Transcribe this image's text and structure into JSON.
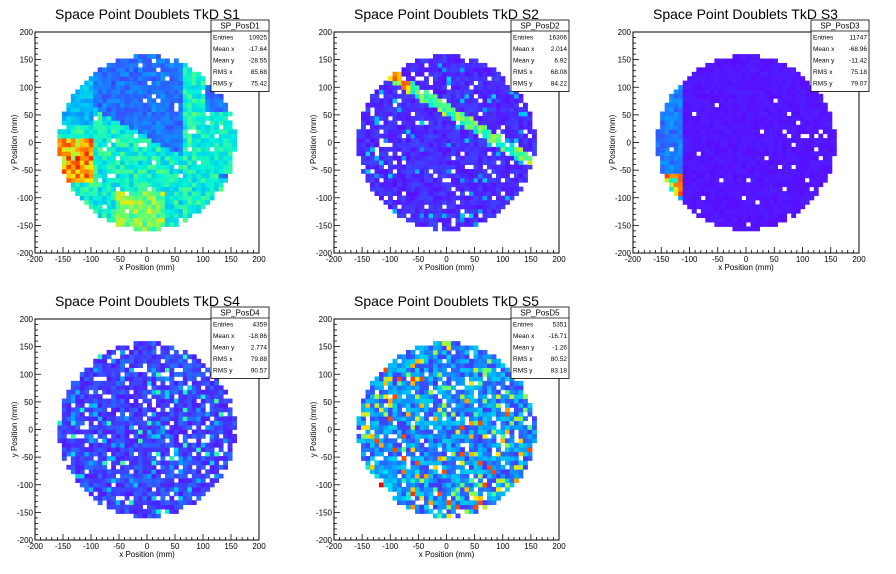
{
  "chart_data": [
    {
      "type": "heatmap",
      "title": "Space Point Doublets TkD S1",
      "xlabel": "x Position (mm)",
      "ylabel": "y Position (mm)",
      "xlim": [
        -200,
        200
      ],
      "ylim": [
        -200,
        200
      ],
      "x_ticks": [
        "-200",
        "-150",
        "-100",
        "-50",
        "0",
        "50",
        "100",
        "150",
        "200"
      ],
      "y_ticks": [
        "-200",
        "-150",
        "-100",
        "-50",
        "0",
        "50",
        "100",
        "150",
        "200"
      ],
      "stats": {
        "name": "SP_PosD1",
        "rows": [
          {
            "label": "Entries",
            "value": "10925"
          },
          {
            "label": "Mean x",
            "value": "-17.64"
          },
          {
            "label": "Mean y",
            "value": "-28.55"
          },
          {
            "label": "RMS x",
            "value": "85.68"
          },
          {
            "label": "RMS y",
            "value": "75.42"
          }
        ]
      },
      "pattern": "s1"
    },
    {
      "type": "heatmap",
      "title": "Space Point Doublets TkD S2",
      "xlabel": "x Position (mm)",
      "ylabel": "y Position (mm)",
      "xlim": [
        -200,
        200
      ],
      "ylim": [
        -200,
        200
      ],
      "x_ticks": [
        "-200",
        "-150",
        "-100",
        "-50",
        "0",
        "50",
        "100",
        "150",
        "200"
      ],
      "y_ticks": [
        "-200",
        "-150",
        "-100",
        "-50",
        "0",
        "50",
        "100",
        "150",
        "200"
      ],
      "stats": {
        "name": "SP_PosD2",
        "rows": [
          {
            "label": "Entries",
            "value": "16306"
          },
          {
            "label": "Mean x",
            "value": "2.014"
          },
          {
            "label": "Mean y",
            "value": "6.92"
          },
          {
            "label": "RMS x",
            "value": "68.08"
          },
          {
            "label": "RMS y",
            "value": "84.22"
          }
        ]
      },
      "pattern": "s2"
    },
    {
      "type": "heatmap",
      "title": "Space Point Doublets TkD S3",
      "xlabel": "x Position (mm)",
      "ylabel": "y Position (mm)",
      "xlim": [
        -200,
        200
      ],
      "ylim": [
        -200,
        200
      ],
      "x_ticks": [
        "-200",
        "-150",
        "-100",
        "-50",
        "0",
        "50",
        "100",
        "150",
        "200"
      ],
      "y_ticks": [
        "-200",
        "-150",
        "-100",
        "-50",
        "0",
        "50",
        "100",
        "150",
        "200"
      ],
      "stats": {
        "name": "SP_PosD3",
        "rows": [
          {
            "label": "Entries",
            "value": "11747"
          },
          {
            "label": "Mean x",
            "value": "-68.96"
          },
          {
            "label": "Mean y",
            "value": "-11.42"
          },
          {
            "label": "RMS x",
            "value": "75.18"
          },
          {
            "label": "RMS y",
            "value": "79.07"
          }
        ]
      },
      "pattern": "s3"
    },
    {
      "type": "heatmap",
      "title": "Space Point Doublets TkD S4",
      "xlabel": "x Position (mm)",
      "ylabel": "y Position (mm)",
      "xlim": [
        -200,
        200
      ],
      "ylim": [
        -200,
        200
      ],
      "x_ticks": [
        "-200",
        "-150",
        "-100",
        "-50",
        "0",
        "50",
        "100",
        "150",
        "200"
      ],
      "y_ticks": [
        "-200",
        "-150",
        "-100",
        "-50",
        "0",
        "50",
        "100",
        "150",
        "200"
      ],
      "stats": {
        "name": "SP_PosD4",
        "rows": [
          {
            "label": "Entries",
            "value": "4359"
          },
          {
            "label": "Mean x",
            "value": "-18.86"
          },
          {
            "label": "Mean y",
            "value": "2.774"
          },
          {
            "label": "RMS x",
            "value": "79.88"
          },
          {
            "label": "RMS y",
            "value": "90.57"
          }
        ]
      },
      "pattern": "s4"
    },
    {
      "type": "heatmap",
      "title": "Space Point Doublets TkD S5",
      "xlabel": "x Position (mm)",
      "ylabel": "y Position (mm)",
      "xlim": [
        -200,
        200
      ],
      "ylim": [
        -200,
        200
      ],
      "x_ticks": [
        "-200",
        "-150",
        "-100",
        "-50",
        "0",
        "50",
        "100",
        "150",
        "200"
      ],
      "y_ticks": [
        "-200",
        "-150",
        "-100",
        "-50",
        "0",
        "50",
        "100",
        "150",
        "200"
      ],
      "stats": {
        "name": "SP_PosD5",
        "rows": [
          {
            "label": "Entries",
            "value": "5351"
          },
          {
            "label": "Mean x",
            "value": "-16.71"
          },
          {
            "label": "Mean y",
            "value": "-1.26"
          },
          {
            "label": "RMS x",
            "value": "80.52"
          },
          {
            "label": "RMS y",
            "value": "83.18"
          }
        ]
      },
      "pattern": "s5"
    }
  ]
}
